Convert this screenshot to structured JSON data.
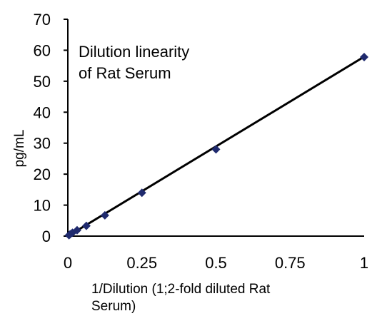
{
  "chart_data": {
    "type": "scatter",
    "title": "",
    "annotation_lines": [
      "Dilution linearity",
      "of Rat Serum"
    ],
    "xlabel_lines": [
      "1/Dilution (1;2-fold diluted Rat",
      "Serum)"
    ],
    "ylabel": "pg/mL",
    "xlim": [
      0,
      1
    ],
    "ylim": [
      0,
      70
    ],
    "x_ticks": [
      0,
      0.25,
      0.5,
      0.75,
      1
    ],
    "x_tick_labels": [
      "0",
      "0.25",
      "0.5",
      "0.75",
      "1"
    ],
    "y_ticks": [
      0,
      10,
      20,
      30,
      40,
      50,
      60,
      70
    ],
    "y_tick_labels": [
      "0",
      "10",
      "20",
      "30",
      "40",
      "50",
      "60",
      "70"
    ],
    "grid": false,
    "legend": "none",
    "trendline": {
      "x": [
        0,
        1
      ],
      "y": [
        0,
        57.9
      ],
      "color": "#000000"
    },
    "series": [
      {
        "marker": "diamond",
        "color": "#1f2a6e",
        "x": [
          0.0039,
          0.0078,
          0.0156,
          0.03125,
          0.0625,
          0.125,
          0.25,
          0.5,
          1
        ],
        "y": [
          0.3,
          0.6,
          1.1,
          1.9,
          3.3,
          6.7,
          14.0,
          28.0,
          57.8
        ]
      }
    ]
  }
}
